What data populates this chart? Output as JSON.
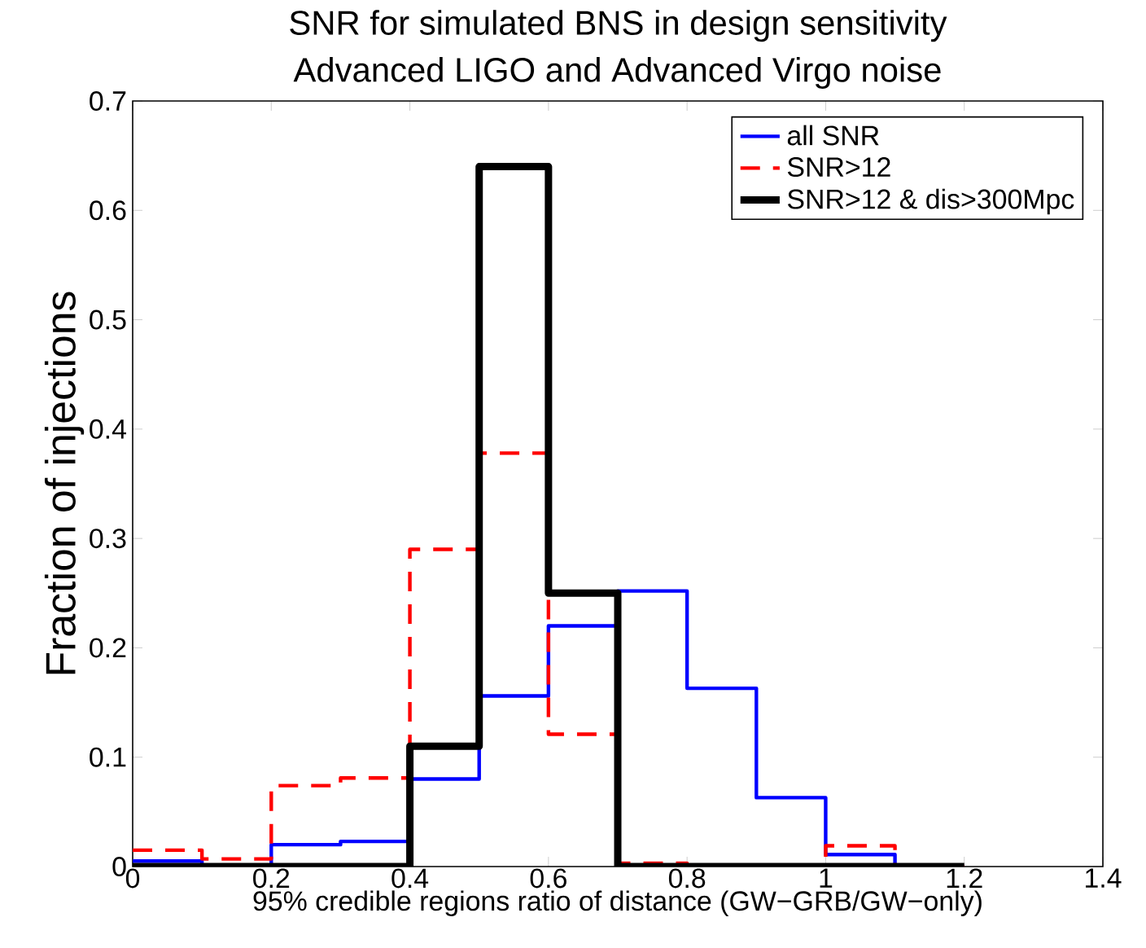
{
  "chart_data": {
    "type": "histogram",
    "title": "SNR for simulated BNS in design sensitivity",
    "subtitle": "Advanced LIGO and Advanced Virgo noise",
    "xlabel": "95% credible regions ratio of distance (GW−GRB/GW−only)",
    "ylabel": "Fraction of injections",
    "bins": [
      0,
      0.1,
      0.2,
      0.3,
      0.4,
      0.5,
      0.6,
      0.7,
      0.8,
      0.9,
      1.0,
      1.1,
      1.2
    ],
    "series": [
      {
        "name": "all SNR",
        "color": "#0000ff",
        "line_style": "solid",
        "values": [
          0.005,
          0.001,
          0.02,
          0.023,
          0.08,
          0.156,
          0.22,
          0.252,
          0.163,
          0.063,
          0.011,
          0
        ]
      },
      {
        "name": "SNR>12",
        "color": "#ff0000",
        "line_style": "dashed",
        "values": [
          0.015,
          0.007,
          0.074,
          0.081,
          0.29,
          0.378,
          0.121,
          0.003,
          0,
          0,
          0.019,
          0
        ]
      },
      {
        "name": "SNR>12 & dis>300Mpc",
        "color": "#000000",
        "line_style": "solid",
        "values": [
          0,
          0,
          0,
          0,
          0.11,
          0.64,
          0.25,
          0,
          0,
          0,
          0,
          0
        ]
      }
    ],
    "xlim": [
      0,
      1.4
    ],
    "ylim": [
      0,
      0.7
    ],
    "xticks": [
      0,
      0.2,
      0.4,
      0.6,
      0.8,
      1,
      1.2,
      1.4
    ],
    "yticks": [
      0,
      0.1,
      0.2,
      0.3,
      0.4,
      0.5,
      0.6,
      0.7
    ],
    "grid": false,
    "legend": "top right"
  }
}
